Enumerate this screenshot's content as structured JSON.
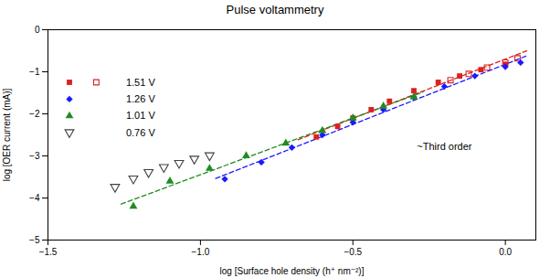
{
  "chart_data": {
    "type": "scatter",
    "title": "Pulse voltammetry",
    "xlabel": "log [Surface hole density (h⁺ nm⁻²)]",
    "ylabel": "log [OER current (mA)]",
    "xlim": [
      -1.5,
      0.1
    ],
    "ylim": [
      -5,
      0
    ],
    "xticks": [
      {
        "value": -1.5,
        "label": "−1.5"
      },
      {
        "value": -1.0,
        "label": "−1.0"
      },
      {
        "value": -0.5,
        "label": "−0.5"
      },
      {
        "value": 0.0,
        "label": "0.0"
      }
    ],
    "yticks": [
      -5,
      -4,
      -3,
      -2,
      -1,
      0
    ],
    "grid": false,
    "legend": "upper left",
    "annotations": [
      {
        "text": "~Third order",
        "x": -0.2,
        "y": -2.85
      }
    ],
    "series": [
      {
        "type": "line",
        "line_style": "dashed",
        "color": "#dd2020",
        "x": [
          -0.68,
          0.07
        ],
        "values": [
          -2.615,
          -0.501
        ]
      },
      {
        "type": "line",
        "line_style": "dashed",
        "color": "#1a1aff",
        "x": [
          -0.95,
          0.07
        ],
        "values": [
          -3.536,
          -0.622
        ]
      },
      {
        "type": "line",
        "line_style": "dashed",
        "color": "#228B22",
        "x": [
          -1.26,
          -0.27
        ],
        "values": [
          -4.146,
          -1.482
        ]
      },
      {
        "name": "1.51 V",
        "marker": "square",
        "color": "#dd2020",
        "x": [
          -0.62,
          -0.55,
          -0.5,
          -0.44,
          -0.38,
          -0.3,
          -0.22,
          -0.15,
          -0.08,
          0.0
        ],
        "values": [
          -2.55,
          -2.3,
          -2.1,
          -1.9,
          -1.7,
          -1.45,
          -1.25,
          -1.1,
          -0.95,
          -0.82
        ]
      },
      {
        "name": "1.51 V",
        "marker": "square_open",
        "color": "#dd2020",
        "x": [
          -0.18,
          -0.12,
          -0.06,
          0.0,
          0.04
        ],
        "values": [
          -1.2,
          -1.05,
          -0.9,
          -0.78,
          -0.68
        ]
      },
      {
        "name": "1.26 V",
        "marker": "diamond",
        "color": "#1a1aff",
        "x": [
          -0.92,
          -0.8,
          -0.7,
          -0.6,
          -0.5,
          -0.4,
          -0.3,
          -0.2,
          -0.1,
          0.0,
          0.05
        ],
        "values": [
          -3.55,
          -3.15,
          -2.8,
          -2.5,
          -2.2,
          -1.9,
          -1.6,
          -1.35,
          -1.1,
          -0.88,
          -0.78
        ]
      },
      {
        "name": "1.01 V",
        "marker": "triangle_up",
        "color": "#228B22",
        "x": [
          -1.22,
          -1.1,
          -0.97,
          -0.85,
          -0.72,
          -0.6,
          -0.5,
          -0.4,
          -0.3
        ],
        "values": [
          -4.2,
          -3.6,
          -3.3,
          -3.0,
          -2.7,
          -2.4,
          -2.1,
          -1.82,
          -1.6
        ]
      },
      {
        "name": "0.76 V",
        "marker": "triangle_down_open",
        "color": "#404040",
        "x": [
          -1.28,
          -1.22,
          -1.17,
          -1.12,
          -1.07,
          -1.02,
          -0.97
        ],
        "values": [
          -3.75,
          -3.55,
          -3.4,
          -3.28,
          -3.18,
          -3.08,
          -3.0
        ]
      }
    ]
  }
}
